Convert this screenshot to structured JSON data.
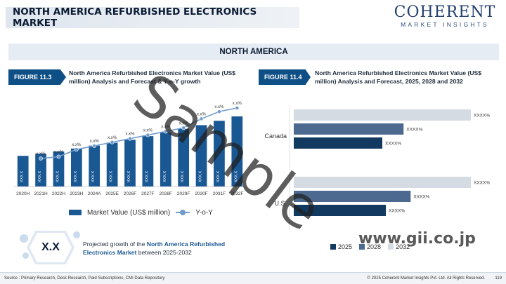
{
  "header": {
    "title": "NORTH AMERICA REFURBISHED ELECTRONICS MARKET",
    "logo_main": "COHERENT",
    "logo_sub": "MARKET INSIGHTS"
  },
  "region_title": "NORTH AMERICA",
  "figure_left": {
    "tag": "FIGURE 11.3",
    "title": "North America Refurbished Electronics Market Value (US$ million) Analysis and Forecast & Y-o-Y growth"
  },
  "figure_right": {
    "tag": "FIGURE 11.4",
    "title": "North America Refurbished Electronics Market Value (US$ million) Analysis and Forecast, 2025, 2028 and 2032"
  },
  "legend_left": {
    "bar": "Market Value (US$ million)",
    "line": "Y-o-Y"
  },
  "chart_data": [
    {
      "type": "bar",
      "categories": [
        "2020H",
        "2021H",
        "2022H",
        "2023H",
        "2024A",
        "2025E",
        "2026F",
        "2027F",
        "2028F",
        "2029F",
        "2030F",
        "2031F",
        "2032F"
      ],
      "series": [
        {
          "name": "Market Value (US$ million)",
          "values": [
            42,
            45,
            48,
            52,
            56,
            60,
            64,
            69,
            74,
            79,
            84,
            90,
            96
          ],
          "labels": [
            "XXX.X",
            "XXX.X",
            "XXX.X",
            "XXX.X",
            "XXX.X",
            "XXX.X",
            "XXX.X",
            "XXX.X",
            "XXX.X",
            "XXX.X",
            "XXX.X",
            "XXX.X",
            "XXX.X"
          ]
        },
        {
          "name": "Y-o-Y",
          "values": [
            null,
            5.5,
            6.0,
            8.0,
            9.0,
            10.0,
            11.0,
            12.0,
            13.0,
            14.0,
            16.5,
            18.5,
            19.5
          ],
          "labels": [
            "",
            "x.x%",
            "x.x%",
            "x.x%",
            "x.x%",
            "x.x%",
            "x.x%",
            "x.x%",
            "x.x%",
            "x.x%",
            "x.x%",
            "x.x%",
            "x.x%"
          ]
        }
      ],
      "legend": "bottom",
      "grid": false
    },
    {
      "type": "bar",
      "orientation": "horizontal",
      "categories": [
        "Canada",
        "U.S."
      ],
      "series": [
        {
          "name": "2032",
          "color": "#d4dbe3",
          "values": [
            100,
            100
          ],
          "labels": [
            "XXXX%",
            "XXXX%"
          ]
        },
        {
          "name": "2028",
          "color": "#4c6a8f",
          "values": [
            62,
            66
          ],
          "labels": [
            "XXXX%",
            "XXXX%"
          ]
        },
        {
          "name": "2025",
          "color": "#12395f",
          "values": [
            50,
            52
          ],
          "labels": [
            "XXXX%",
            "XXXX%"
          ]
        }
      ],
      "legend": "bottom"
    }
  ],
  "growth": {
    "value": "X.X",
    "text_before": "Projected growth of the ",
    "text_bold": "North America Refurbished Electronics Market",
    "text_after": " between 2025-2032"
  },
  "footer": {
    "source": "Source : Primary Research, Desk Research, Paid Subscriptions, CMI Data Repository",
    "copyright": "© 2025 Coherent Market Insights Pvt. Ltd. All Rights Reserved.",
    "page": "119"
  },
  "watermark": "Sample",
  "site_watermark": "www.gii.co.jp",
  "colors": {
    "bar": "#1a5894",
    "line": "#6f9ccd",
    "tag": "#0e4f86"
  }
}
